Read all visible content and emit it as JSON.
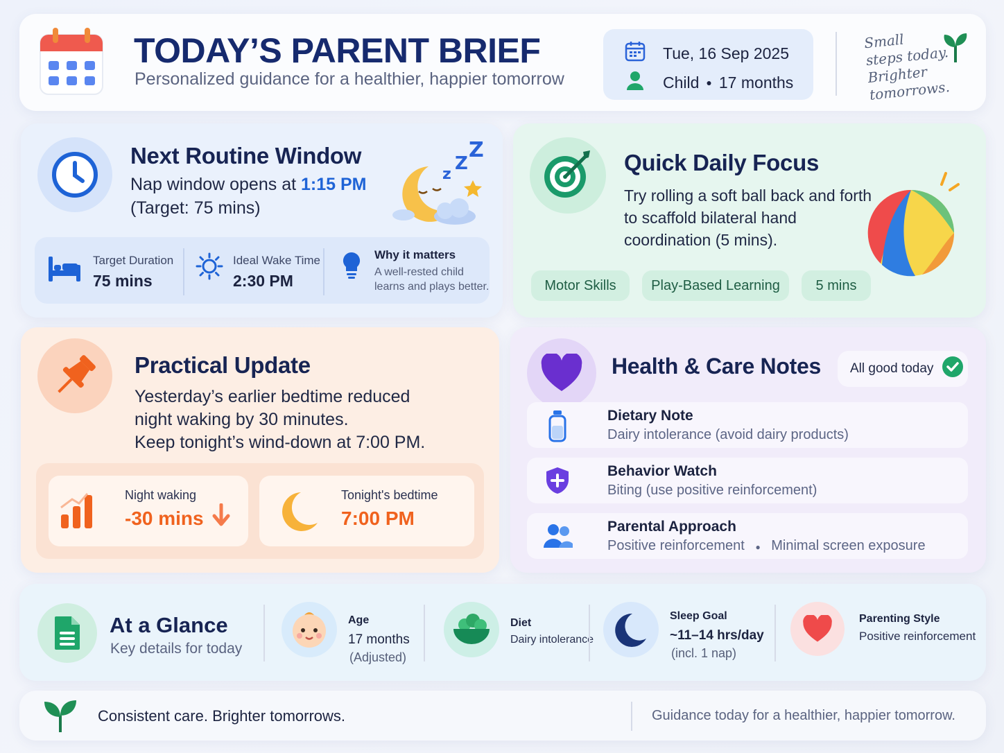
{
  "header": {
    "title": "TODAY’S PARENT BRIEF",
    "subtitle": "Personalized guidance for a healthier, happier tomorrow",
    "date": "Tue, 16 Sep 2025",
    "child_label": "Child",
    "child_age": "17 months",
    "tagline_lines": [
      "Small",
      "steps today.",
      "Brighter",
      "tomorrows."
    ]
  },
  "routine": {
    "title": "Next Routine Window",
    "line1_prefix": "Nap window opens at ",
    "line1_time": "1:15 PM",
    "line2": "(Target: 75 mins)",
    "stats": [
      {
        "label": "Target Duration",
        "value": "75 mins",
        "icon": "bed-icon"
      },
      {
        "label": "Ideal Wake Time",
        "value": "2:30 PM",
        "icon": "sun-icon"
      }
    ],
    "why": {
      "title": "Why it matters",
      "line1": "A well-rested child",
      "line2": "learns and plays better.",
      "icon": "lightbulb-icon"
    }
  },
  "focus": {
    "title": "Quick Daily Focus",
    "lines": [
      "Try rolling a soft ball back and forth",
      "to scaffold bilateral hand",
      "coordination (5 mins)."
    ],
    "tags": [
      "Motor Skills",
      "Play-Based Learning",
      "5 mins"
    ]
  },
  "practical": {
    "title": "Practical Update",
    "lines": [
      "Yesterday’s earlier bedtime reduced",
      "night waking by 30 minutes.",
      "Keep tonight’s wind-down at 7:00 PM."
    ],
    "night_label": "Night waking",
    "night_value": "-30 mins",
    "bedtime_label": "Tonight's bedtime",
    "bedtime_value": "7:00 PM"
  },
  "health": {
    "title": "Health & Care Notes",
    "status": "All good today",
    "notes": [
      {
        "title": "Dietary Note",
        "detail": "Dairy intolerance (avoid dairy products)",
        "icon": "bottle-icon"
      },
      {
        "title": "Behavior Watch",
        "detail": "Biting (use positive reinforcement)",
        "icon": "shield-icon"
      },
      {
        "title": "Parental Approach",
        "detail_a": "Positive reinforcement",
        "detail_b": "Minimal screen exposure",
        "icon": "people-icon"
      }
    ]
  },
  "glance": {
    "title": "At a Glance",
    "subtitle": "Key details for today",
    "age_label": "Age",
    "age_value": "17 months",
    "age_sub": "(Adjusted)",
    "diet_label": "Diet",
    "diet_value": "Dairy intolerance",
    "sleep_label": "Sleep Goal",
    "sleep_value": "~11–14 hrs/day",
    "sleep_sub": "(incl. 1 nap)",
    "style_label": "Parenting Style",
    "style_value": "Positive reinforcement"
  },
  "footer": {
    "left": "Consistent care. Brighter tomorrows.",
    "right": "Guidance today for a healthier, happier tomorrow."
  },
  "colors": {
    "navy": "#162a6e",
    "blue_accent": "#1e63d6",
    "orange_accent": "#f0621e",
    "green_check": "#1fa66a",
    "purple": "#6a2fcf"
  }
}
